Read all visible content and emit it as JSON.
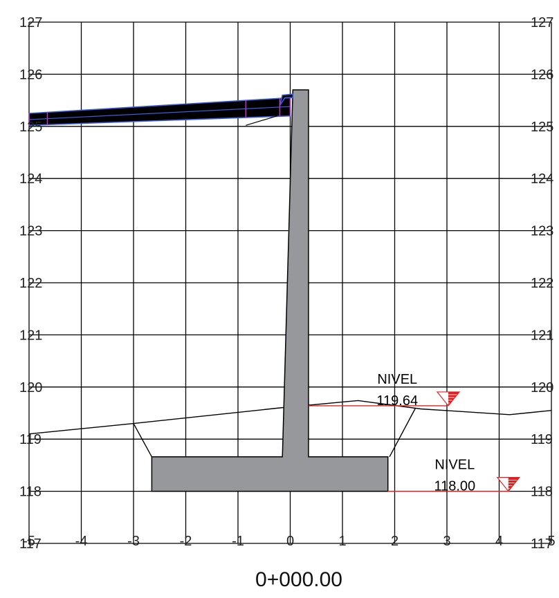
{
  "chart_data": {
    "type": "diagram",
    "x_ticks": [
      -5,
      -4,
      -3,
      -2,
      -1,
      0,
      1,
      2,
      3,
      4,
      5
    ],
    "x_tick_labels": [
      "-5",
      "-4",
      "-3",
      "-2",
      "-1",
      "0",
      "1",
      "2",
      "3",
      "4",
      "5"
    ],
    "y_ticks": [
      117,
      118,
      119,
      120,
      121,
      122,
      123,
      124,
      125,
      126,
      127
    ],
    "y_tick_labels": [
      "117",
      "118",
      "119",
      "120",
      "121",
      "122",
      "123",
      "124",
      "125",
      "126",
      "127"
    ],
    "xlim": [
      -5,
      5
    ],
    "ylim": [
      117,
      127
    ],
    "grid": true,
    "station_label": "0+000.00",
    "ground_profile": {
      "x": [
        -5,
        -3,
        -0.2,
        1.3,
        2.5,
        4.2,
        5
      ],
      "y": [
        119.1,
        119.3,
        119.6,
        119.74,
        119.58,
        119.47,
        119.55
      ]
    },
    "excavation_slopes": [
      {
        "x": [
          -3.0,
          -2.65
        ],
        "y": [
          119.3,
          118.66
        ]
      },
      {
        "x": [
          2.4,
          1.9
        ],
        "y": [
          119.6,
          118.66
        ]
      }
    ],
    "retaining_wall": {
      "x": [
        -2.65,
        -0.15,
        0.05,
        0.35,
        0.35,
        1.87,
        1.87,
        -2.65
      ],
      "y": [
        118.66,
        118.66,
        125.7,
        125.7,
        118.66,
        118.66,
        118.0,
        118.0
      ]
    },
    "road_slab": {
      "x": [
        -5,
        0.0,
        0.0,
        -5
      ],
      "y": [
        125.25,
        125.55,
        125.2,
        125.02
      ]
    },
    "road_curb": {
      "x": [
        -0.1,
        -0.2,
        -0.15,
        0.05,
        0.05
      ],
      "y": [
        125.55,
        125.4,
        125.6,
        125.62,
        125.55
      ]
    },
    "slab_support_line": {
      "x": [
        -0.85,
        -0.25
      ],
      "y": [
        125.02,
        125.2
      ]
    },
    "water_levels": [
      {
        "label": "NIVEL",
        "value_text": "119.64",
        "elevation": 119.64,
        "x_start": 0.35,
        "x_end": 3.0,
        "label_x": 2.05,
        "marker_x": 3.0
      },
      {
        "label": "NIVEL",
        "value_text": "118.00",
        "elevation": 118.0,
        "x_start": 1.87,
        "x_end": 4.2,
        "label_x": 3.15,
        "marker_x": 4.15
      }
    ],
    "colors": {
      "grid": "#000000",
      "wall": "#97989c",
      "slab": "#000000",
      "slab_outline": "#3a5ddc",
      "slab_nodes": "#cc33cc",
      "water": "#e02020"
    }
  }
}
